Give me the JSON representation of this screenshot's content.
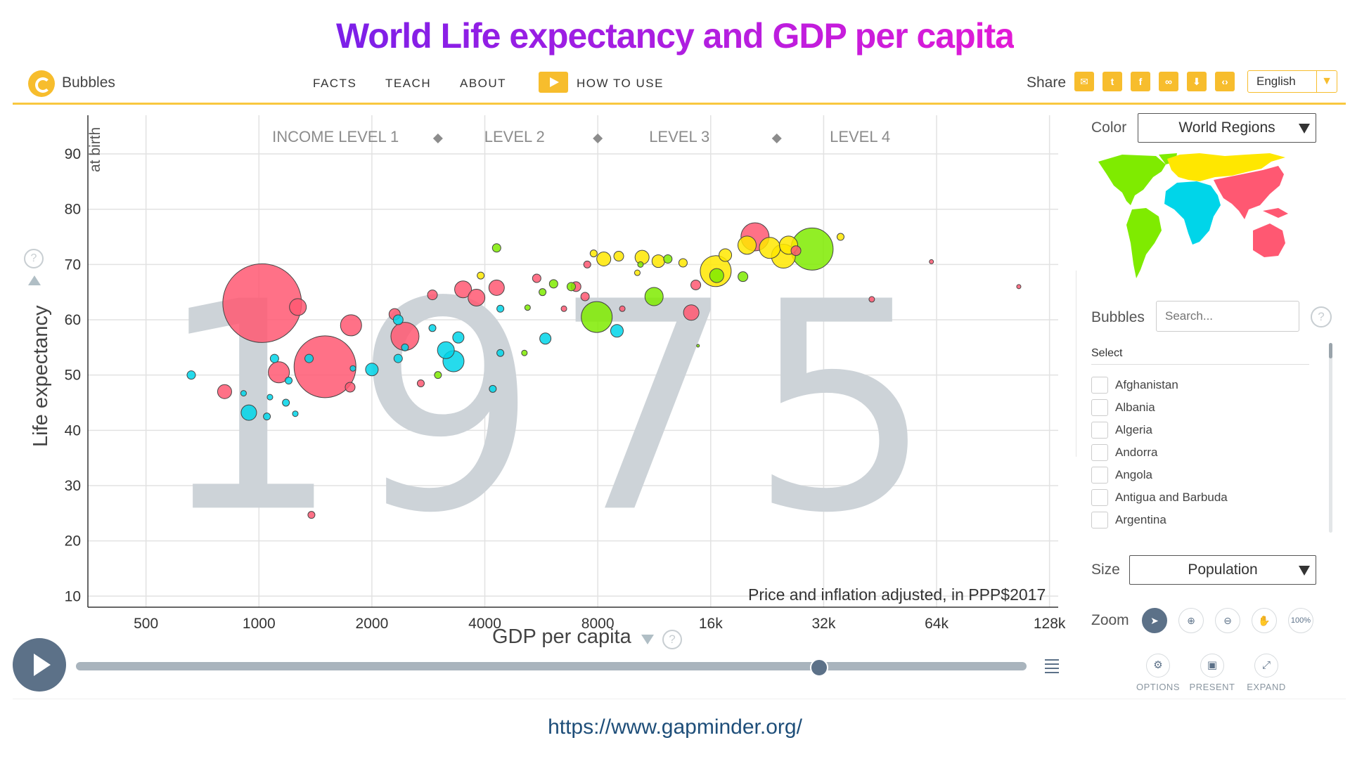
{
  "title": "World Life expectancy and GDP per capita",
  "header": {
    "brand": "Bubbles",
    "nav": [
      "FACTS",
      "TEACH",
      "ABOUT"
    ],
    "how_to_use": "HOW TO USE",
    "share_label": "Share",
    "language": "English"
  },
  "chart_data": {
    "type": "scatter",
    "year": "1975",
    "xlabel": "GDP per capita",
    "ylabel": "Life expectancy",
    "ylabel_sub": "at birth",
    "x_scale": "log2",
    "xlim": [
      350,
      135000
    ],
    "ylim": [
      8,
      97
    ],
    "x_ticks": [
      500,
      1000,
      2000,
      4000,
      8000,
      16000,
      32000,
      64000,
      128000
    ],
    "x_tick_labels": [
      "500",
      "1000",
      "2000",
      "4000",
      "8000",
      "16k",
      "32k",
      "64k",
      "128k"
    ],
    "y_ticks": [
      10,
      20,
      30,
      40,
      50,
      60,
      70,
      80,
      90
    ],
    "y_tick_labels": [
      "10",
      "20",
      "30",
      "40",
      "50",
      "60",
      "70",
      "80",
      "90"
    ],
    "income_levels": [
      "INCOME LEVEL 1",
      "LEVEL 2",
      "LEVEL 3",
      "LEVEL 4"
    ],
    "income_boundaries": [
      3000,
      8000,
      24000
    ],
    "note": "Price and inflation adjusted, in PPP$2017",
    "region_colors": {
      "asia": "#ff5872",
      "africa": "#00d5e9",
      "americas": "#7feb00",
      "europe": "#ffe700"
    },
    "points": [
      {
        "x": 1020,
        "y": 63,
        "r": 56,
        "c": "asia"
      },
      {
        "x": 1500,
        "y": 51.5,
        "r": 44,
        "c": "asia"
      },
      {
        "x": 1270,
        "y": 62.3,
        "r": 12,
        "c": "asia"
      },
      {
        "x": 1760,
        "y": 59,
        "r": 15,
        "c": "asia"
      },
      {
        "x": 1130,
        "y": 50.5,
        "r": 15,
        "c": "asia"
      },
      {
        "x": 2450,
        "y": 57,
        "r": 20,
        "c": "asia"
      },
      {
        "x": 3500,
        "y": 65.5,
        "r": 12,
        "c": "asia"
      },
      {
        "x": 3800,
        "y": 64,
        "r": 12,
        "c": "asia"
      },
      {
        "x": 4300,
        "y": 65.8,
        "r": 11,
        "c": "asia"
      },
      {
        "x": 810,
        "y": 47,
        "r": 10,
        "c": "asia"
      },
      {
        "x": 2300,
        "y": 61,
        "r": 8,
        "c": "asia"
      },
      {
        "x": 1750,
        "y": 47.8,
        "r": 7,
        "c": "asia"
      },
      {
        "x": 2900,
        "y": 64.5,
        "r": 7,
        "c": "asia"
      },
      {
        "x": 5500,
        "y": 67.5,
        "r": 6,
        "c": "asia"
      },
      {
        "x": 7000,
        "y": 66,
        "r": 7,
        "c": "asia"
      },
      {
        "x": 7400,
        "y": 64.2,
        "r": 6,
        "c": "asia"
      },
      {
        "x": 14200,
        "y": 61.3,
        "r": 11,
        "c": "asia"
      },
      {
        "x": 14600,
        "y": 66.3,
        "r": 7,
        "c": "asia"
      },
      {
        "x": 21000,
        "y": 75,
        "r": 20,
        "c": "asia"
      },
      {
        "x": 27000,
        "y": 72.5,
        "r": 7,
        "c": "asia"
      },
      {
        "x": 43000,
        "y": 63.7,
        "r": 4,
        "c": "asia"
      },
      {
        "x": 62000,
        "y": 70.5,
        "r": 3,
        "c": "asia"
      },
      {
        "x": 1380,
        "y": 24.7,
        "r": 5,
        "c": "asia"
      },
      {
        "x": 2700,
        "y": 48.5,
        "r": 5,
        "c": "asia"
      },
      {
        "x": 6500,
        "y": 62,
        "r": 4,
        "c": "asia"
      },
      {
        "x": 9300,
        "y": 62,
        "r": 4,
        "c": "asia"
      },
      {
        "x": 106000,
        "y": 66,
        "r": 3,
        "c": "asia"
      },
      {
        "x": 7500,
        "y": 70,
        "r": 5,
        "c": "asia"
      },
      {
        "x": 660,
        "y": 50,
        "r": 6,
        "c": "africa"
      },
      {
        "x": 940,
        "y": 43.2,
        "r": 11,
        "c": "africa"
      },
      {
        "x": 1100,
        "y": 53,
        "r": 6,
        "c": "africa"
      },
      {
        "x": 1360,
        "y": 53,
        "r": 6,
        "c": "africa"
      },
      {
        "x": 2000,
        "y": 51,
        "r": 9,
        "c": "africa"
      },
      {
        "x": 2350,
        "y": 53,
        "r": 6,
        "c": "africa"
      },
      {
        "x": 2450,
        "y": 55,
        "r": 5,
        "c": "africa"
      },
      {
        "x": 3150,
        "y": 54.5,
        "r": 12,
        "c": "africa"
      },
      {
        "x": 3300,
        "y": 52.5,
        "r": 15,
        "c": "africa"
      },
      {
        "x": 3400,
        "y": 56.8,
        "r": 8,
        "c": "africa"
      },
      {
        "x": 2900,
        "y": 58.5,
        "r": 5,
        "c": "africa"
      },
      {
        "x": 2350,
        "y": 60,
        "r": 7,
        "c": "africa"
      },
      {
        "x": 4400,
        "y": 54,
        "r": 5,
        "c": "africa"
      },
      {
        "x": 4200,
        "y": 47.5,
        "r": 5,
        "c": "africa"
      },
      {
        "x": 4400,
        "y": 62,
        "r": 5,
        "c": "africa"
      },
      {
        "x": 5800,
        "y": 56.6,
        "r": 8,
        "c": "africa"
      },
      {
        "x": 9000,
        "y": 58,
        "r": 9,
        "c": "africa"
      },
      {
        "x": 1050,
        "y": 42.5,
        "r": 5,
        "c": "africa"
      },
      {
        "x": 1180,
        "y": 45,
        "r": 5,
        "c": "africa"
      },
      {
        "x": 1200,
        "y": 49,
        "r": 5,
        "c": "africa"
      },
      {
        "x": 1070,
        "y": 46,
        "r": 4,
        "c": "africa"
      },
      {
        "x": 1250,
        "y": 43,
        "r": 4,
        "c": "africa"
      },
      {
        "x": 1780,
        "y": 51.2,
        "r": 4,
        "c": "africa"
      },
      {
        "x": 910,
        "y": 46.7,
        "r": 4,
        "c": "africa"
      },
      {
        "x": 7950,
        "y": 60.5,
        "r": 22,
        "c": "americas"
      },
      {
        "x": 11300,
        "y": 64.2,
        "r": 13,
        "c": "americas"
      },
      {
        "x": 16600,
        "y": 68,
        "r": 10,
        "c": "americas"
      },
      {
        "x": 29800,
        "y": 72.8,
        "r": 30,
        "c": "americas"
      },
      {
        "x": 4300,
        "y": 73,
        "r": 6,
        "c": "americas"
      },
      {
        "x": 5200,
        "y": 62.2,
        "r": 4,
        "c": "americas"
      },
      {
        "x": 6100,
        "y": 66.5,
        "r": 6,
        "c": "americas"
      },
      {
        "x": 6800,
        "y": 66,
        "r": 6,
        "c": "americas"
      },
      {
        "x": 12300,
        "y": 71,
        "r": 6,
        "c": "americas"
      },
      {
        "x": 19500,
        "y": 67.8,
        "r": 7,
        "c": "americas"
      },
      {
        "x": 5100,
        "y": 54,
        "r": 4,
        "c": "americas"
      },
      {
        "x": 3000,
        "y": 50,
        "r": 5,
        "c": "americas"
      },
      {
        "x": 5700,
        "y": 65,
        "r": 5,
        "c": "americas"
      },
      {
        "x": 10400,
        "y": 70,
        "r": 4,
        "c": "americas"
      },
      {
        "x": 14800,
        "y": 55.3,
        "r": 2,
        "c": "americas"
      },
      {
        "x": 8300,
        "y": 71,
        "r": 10,
        "c": "europe"
      },
      {
        "x": 10500,
        "y": 71.3,
        "r": 10,
        "c": "europe"
      },
      {
        "x": 11600,
        "y": 70.6,
        "r": 9,
        "c": "europe"
      },
      {
        "x": 16500,
        "y": 68.8,
        "r": 22,
        "c": "europe"
      },
      {
        "x": 17500,
        "y": 71.7,
        "r": 9,
        "c": "europe"
      },
      {
        "x": 20000,
        "y": 73.5,
        "r": 13,
        "c": "europe"
      },
      {
        "x": 23000,
        "y": 73,
        "r": 15,
        "c": "europe"
      },
      {
        "x": 25000,
        "y": 71.5,
        "r": 17,
        "c": "europe"
      },
      {
        "x": 25800,
        "y": 73.5,
        "r": 13,
        "c": "europe"
      },
      {
        "x": 9100,
        "y": 71.5,
        "r": 7,
        "c": "europe"
      },
      {
        "x": 13500,
        "y": 70.3,
        "r": 6,
        "c": "europe"
      },
      {
        "x": 35500,
        "y": 75,
        "r": 5,
        "c": "europe"
      },
      {
        "x": 7800,
        "y": 72,
        "r": 5,
        "c": "europe"
      },
      {
        "x": 3900,
        "y": 68,
        "r": 5,
        "c": "europe"
      },
      {
        "x": 10200,
        "y": 68.5,
        "r": 4,
        "c": "europe"
      }
    ]
  },
  "panel": {
    "color_label": "Color",
    "color_value": "World Regions",
    "bubbles_label": "Bubbles",
    "search_placeholder": "Search...",
    "help": "?",
    "select_label": "Select",
    "countries": [
      "Afghanistan",
      "Albania",
      "Algeria",
      "Andorra",
      "Angola",
      "Antigua and Barbuda",
      "Argentina"
    ],
    "size_label": "Size",
    "size_value": "Population",
    "zoom_label": "Zoom",
    "zoom_100": "100%",
    "options": "OPTIONS",
    "present": "PRESENT",
    "expand": "EXPAND"
  },
  "timeline": {
    "progress": 0.78
  },
  "url": "https://www.gapminder.org/"
}
